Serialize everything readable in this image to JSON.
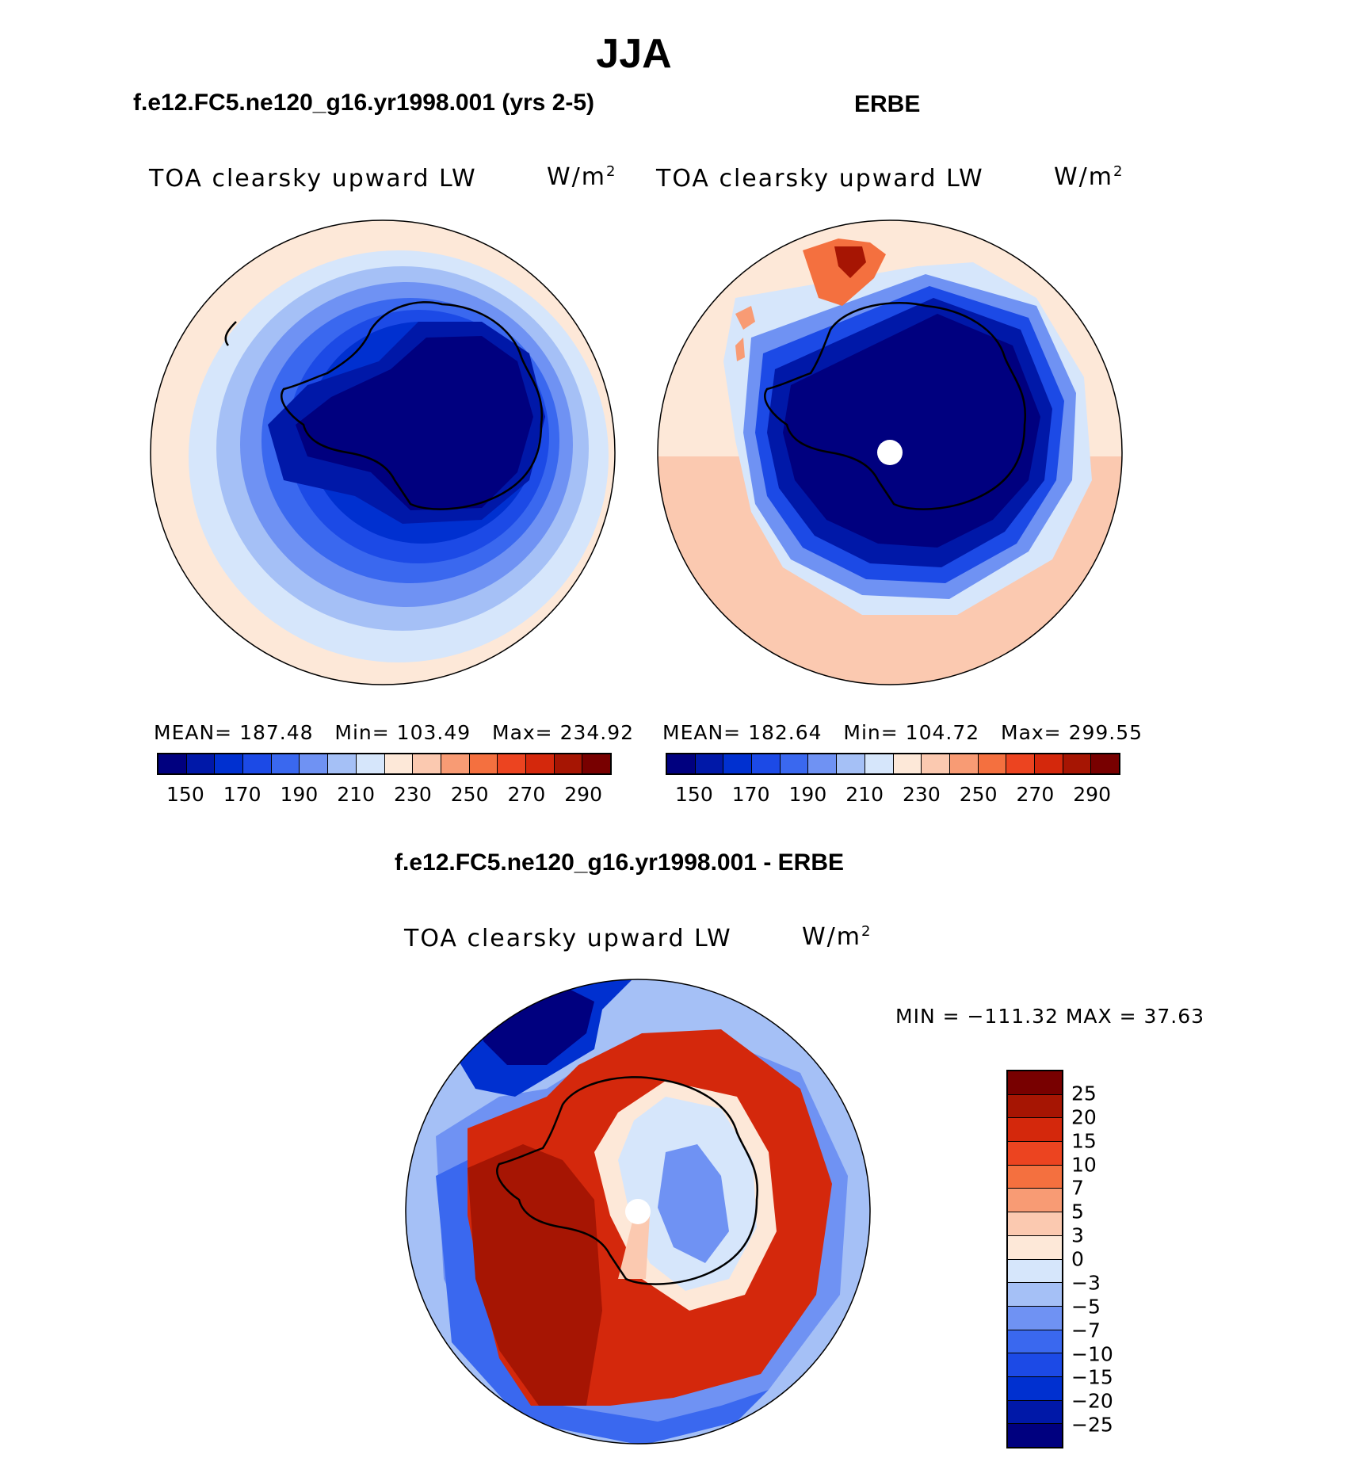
{
  "title": "JJA",
  "panels": [
    {
      "id": "model",
      "title": "f.e12.FC5.ne120_g16.yr1998.001 (yrs 2-5)",
      "variable": "TOA clearsky upward LW",
      "units": "W/m",
      "units_sup": "2",
      "stats": {
        "mean_label": "MEAN=",
        "mean": "187.48",
        "min_label": "Min=",
        "min": "103.49",
        "max_label": "Max=",
        "max": "234.92"
      }
    },
    {
      "id": "obs",
      "title": "ERBE",
      "variable": "TOA clearsky upward LW",
      "units": "W/m",
      "units_sup": "2",
      "stats": {
        "mean_label": "MEAN=",
        "mean": "182.64",
        "min_label": "Min=",
        "min": "104.72",
        "max_label": "Max=",
        "max": "299.55"
      }
    },
    {
      "id": "diff",
      "title": "f.e12.FC5.ne120_g16.yr1998.001 - ERBE",
      "variable": "TOA clearsky upward LW",
      "units": "W/m",
      "units_sup": "2",
      "minmax": "MIN = −111.32 MAX =   37.63"
    }
  ],
  "colorbar_abs": {
    "colors": [
      "#00007f",
      "#0018a8",
      "#0030d0",
      "#1c4ae6",
      "#3a68ef",
      "#6f92f3",
      "#a5c0f6",
      "#d6e6fb",
      "#fde8d8",
      "#fbc9b0",
      "#f89b74",
      "#f4703f",
      "#ec4420",
      "#d4280c",
      "#a61503",
      "#780000"
    ],
    "ticks": [
      "150",
      "170",
      "190",
      "210",
      "230",
      "250",
      "270",
      "290"
    ]
  },
  "colorbar_diff": {
    "colors": [
      "#780000",
      "#a61503",
      "#d4280c",
      "#ec4420",
      "#f4703f",
      "#f89b74",
      "#fbc9b0",
      "#fde8d8",
      "#d6e6fb",
      "#a5c0f6",
      "#6f92f3",
      "#3a68ef",
      "#1c4ae6",
      "#0030d0",
      "#0018a8",
      "#00007f"
    ],
    "ticks": [
      "25",
      "20",
      "15",
      "10",
      "7",
      "5",
      "3",
      "0",
      "−3",
      "−5",
      "−7",
      "−10",
      "−15",
      "−20",
      "−25"
    ]
  }
}
